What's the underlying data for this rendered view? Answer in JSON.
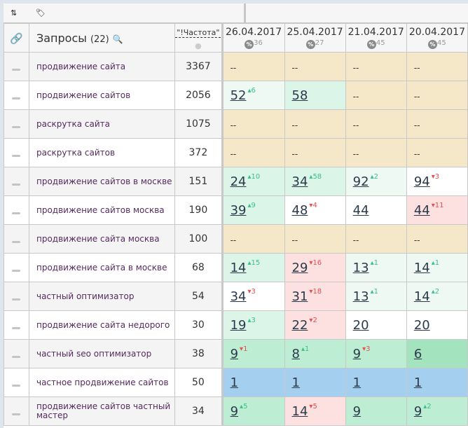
{
  "toolbar": {
    "sort_icon": "sort-icon",
    "tag_icon": "tag-icon"
  },
  "header": {
    "queries_title": "Запросы",
    "queries_count": "(22)",
    "frequency_label": "\"!Частота\"",
    "dates": [
      {
        "date": "26.04.2017",
        "pct": "%",
        "score": "36"
      },
      {
        "date": "25.04.2017",
        "pct": "%",
        "score": "27"
      },
      {
        "date": "21.04.2017",
        "pct": "%",
        "score": "45"
      },
      {
        "date": "20.04.2017",
        "pct": "%",
        "score": "45"
      }
    ]
  },
  "colors": {
    "none": "#f5e8c8",
    "top1": "#a4cfee",
    "top5": "#a3e4bf",
    "top10": "#bdeed4",
    "top30": "#dbf5e8",
    "top50": "#edf9f2",
    "drop": "#fde0e0",
    "white": "#ffffff"
  },
  "rows": [
    {
      "query": "продвижение сайта",
      "freq": "3367",
      "cells": [
        {
          "v": "--",
          "bg": "none"
        },
        {
          "v": "--",
          "bg": "none"
        },
        {
          "v": "--",
          "bg": "none"
        },
        {
          "v": "--",
          "bg": "none"
        }
      ]
    },
    {
      "query": "продвижение сайтов",
      "freq": "2056",
      "cells": [
        {
          "v": "52",
          "d": "6",
          "dir": "up",
          "bg": "top50"
        },
        {
          "v": "58",
          "bg": "top30"
        },
        {
          "v": "--",
          "bg": "none"
        },
        {
          "v": "--",
          "bg": "none"
        }
      ]
    },
    {
      "query": "раскрутка сайта",
      "freq": "1075",
      "cells": [
        {
          "v": "--",
          "bg": "none"
        },
        {
          "v": "--",
          "bg": "none"
        },
        {
          "v": "--",
          "bg": "none"
        },
        {
          "v": "--",
          "bg": "none"
        }
      ]
    },
    {
      "query": "раскрутка сайтов",
      "freq": "372",
      "cells": [
        {
          "v": "--",
          "bg": "none"
        },
        {
          "v": "--",
          "bg": "none"
        },
        {
          "v": "--",
          "bg": "none"
        },
        {
          "v": "--",
          "bg": "none"
        }
      ]
    },
    {
      "query": "продвижение сайтов в москве",
      "freq": "151",
      "cells": [
        {
          "v": "24",
          "d": "10",
          "dir": "up",
          "bg": "top30"
        },
        {
          "v": "34",
          "d": "58",
          "dir": "up",
          "bg": "top30"
        },
        {
          "v": "92",
          "d": "2",
          "dir": "up",
          "bg": "top50"
        },
        {
          "v": "94",
          "d": "3",
          "dir": "dn",
          "bg": "white"
        }
      ]
    },
    {
      "query": "продвижение сайтов москва",
      "freq": "190",
      "cells": [
        {
          "v": "39",
          "d": "9",
          "dir": "up",
          "bg": "top30"
        },
        {
          "v": "48",
          "d": "4",
          "dir": "dn",
          "bg": "white"
        },
        {
          "v": "44",
          "bg": "white"
        },
        {
          "v": "44",
          "d": "11",
          "dir": "dn",
          "bg": "drop"
        }
      ]
    },
    {
      "query": "продвижение сайта москва",
      "freq": "100",
      "cells": [
        {
          "v": "--",
          "bg": "none"
        },
        {
          "v": "--",
          "bg": "none"
        },
        {
          "v": "--",
          "bg": "none"
        },
        {
          "v": "--",
          "bg": "none"
        }
      ]
    },
    {
      "query": "продвижение сайта в москве",
      "freq": "68",
      "cells": [
        {
          "v": "14",
          "d": "15",
          "dir": "up",
          "bg": "top30"
        },
        {
          "v": "29",
          "d": "16",
          "dir": "dn",
          "bg": "drop"
        },
        {
          "v": "13",
          "d": "1",
          "dir": "up",
          "bg": "top50"
        },
        {
          "v": "14",
          "d": "1",
          "dir": "up",
          "bg": "top50"
        }
      ]
    },
    {
      "query": "частный оптимизатор",
      "freq": "54",
      "cells": [
        {
          "v": "34",
          "d": "3",
          "dir": "dn",
          "bg": "white"
        },
        {
          "v": "31",
          "d": "18",
          "dir": "dn",
          "bg": "drop"
        },
        {
          "v": "13",
          "d": "1",
          "dir": "up",
          "bg": "top50"
        },
        {
          "v": "14",
          "d": "2",
          "dir": "up",
          "bg": "top50"
        }
      ]
    },
    {
      "query": "продвижение сайта недорого",
      "freq": "30",
      "cells": [
        {
          "v": "19",
          "d": "3",
          "dir": "up",
          "bg": "top30"
        },
        {
          "v": "22",
          "d": "2",
          "dir": "dn",
          "bg": "drop"
        },
        {
          "v": "20",
          "bg": "white"
        },
        {
          "v": "20",
          "bg": "white"
        }
      ]
    },
    {
      "query": "частный seo оптимизатор",
      "freq": "38",
      "cells": [
        {
          "v": "9",
          "d": "1",
          "dir": "dn",
          "bg": "top10"
        },
        {
          "v": "8",
          "d": "1",
          "dir": "up",
          "bg": "top10"
        },
        {
          "v": "9",
          "d": "3",
          "dir": "dn",
          "bg": "top10"
        },
        {
          "v": "6",
          "bg": "top5"
        }
      ]
    },
    {
      "query": "частное продвижение сайтов",
      "freq": "50",
      "cells": [
        {
          "v": "1",
          "bg": "top1"
        },
        {
          "v": "1",
          "bg": "top1"
        },
        {
          "v": "1",
          "bg": "top1"
        },
        {
          "v": "1",
          "bg": "top1"
        }
      ]
    },
    {
      "query": "продвижение сайтов частный мастер",
      "freq": "34",
      "cells": [
        {
          "v": "9",
          "d": "5",
          "dir": "up",
          "bg": "top10"
        },
        {
          "v": "14",
          "d": "5",
          "dir": "dn",
          "bg": "drop"
        },
        {
          "v": "9",
          "bg": "top10"
        },
        {
          "v": "9",
          "d": "2",
          "dir": "up",
          "bg": "top10"
        }
      ]
    }
  ]
}
